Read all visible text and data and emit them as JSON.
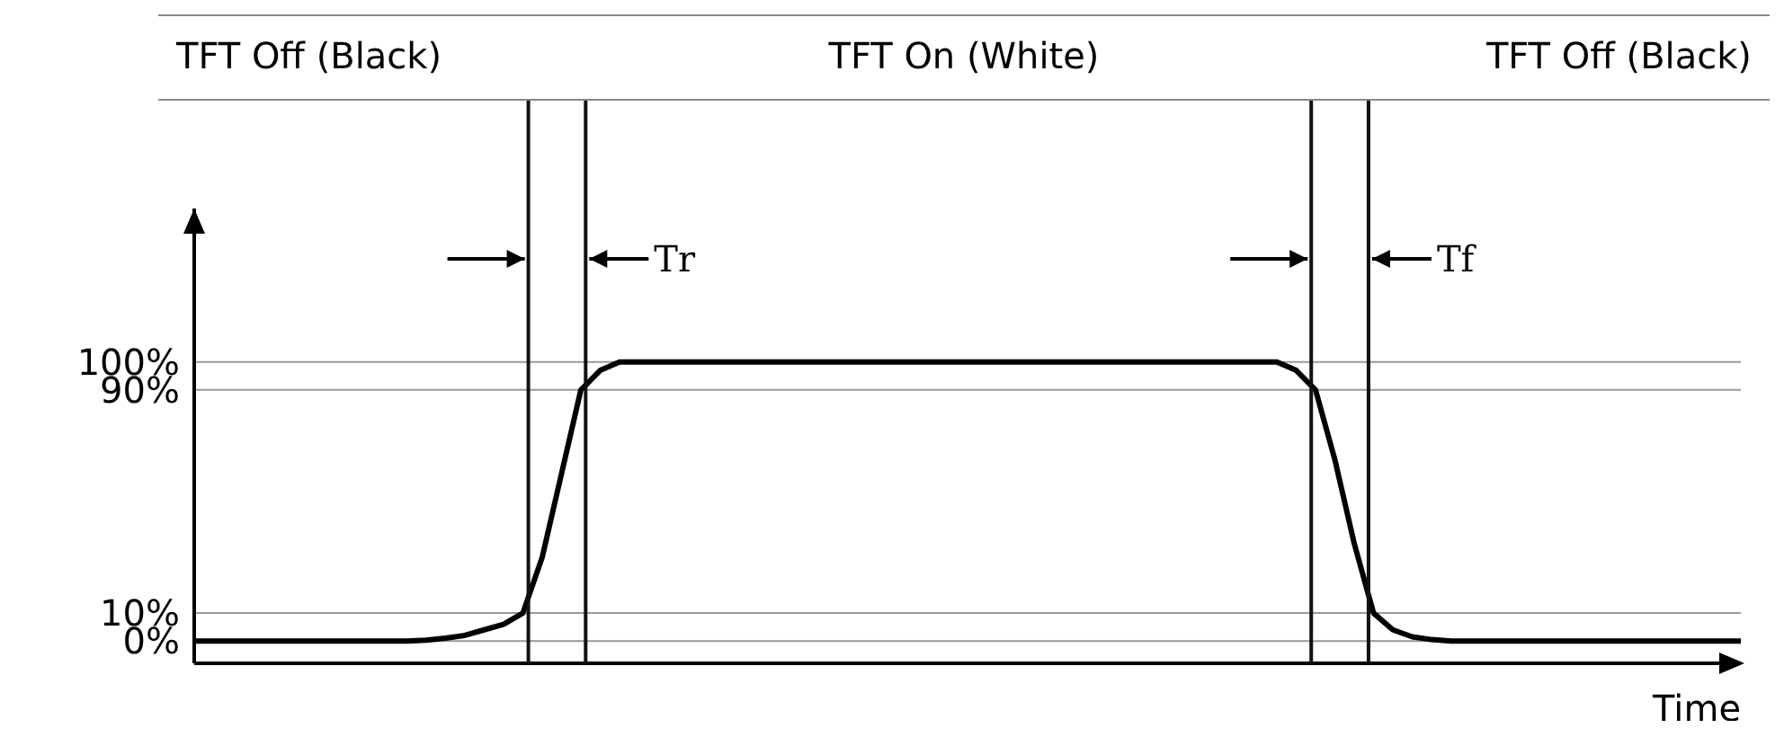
{
  "chart_data": {
    "type": "line",
    "xlabel": "Time",
    "tick_labels": "y",
    "ylim": [
      -8,
      155
    ],
    "categories": [
      null,
      null,
      null,
      null,
      null,
      null,
      null,
      null,
      null,
      null,
      null,
      null,
      null,
      null,
      null,
      null,
      null,
      null,
      null,
      null,
      null,
      null,
      null,
      null,
      null,
      null,
      null,
      null,
      null,
      null,
      null,
      null,
      null,
      null,
      null,
      null,
      null,
      null,
      null,
      null,
      null,
      null,
      null,
      null,
      null,
      null,
      null,
      null,
      null,
      null,
      null,
      null,
      null,
      null,
      null,
      null,
      null,
      null,
      null,
      null,
      null,
      null,
      null,
      null,
      null,
      null,
      null,
      null,
      null,
      null,
      null,
      null,
      null,
      null,
      null,
      null,
      null,
      null,
      null,
      null,
      null
    ],
    "yticks": [
      {
        "value": 0,
        "label": "0%"
      },
      {
        "value": 10,
        "label": "10%"
      },
      {
        "value": 90,
        "label": "90%"
      },
      {
        "value": 100,
        "label": "100%"
      }
    ],
    "marker": "none",
    "line_style": "solid",
    "series": [
      {
        "color": "#000000",
        "values": [
          0,
          0,
          0,
          0,
          0,
          0,
          0,
          0,
          0,
          0,
          0,
          0,
          0.3,
          1,
          2,
          4,
          6,
          10,
          30,
          60,
          90,
          97,
          100,
          100,
          100,
          100,
          100,
          100,
          100,
          100,
          100,
          100,
          100,
          100,
          100,
          100,
          100,
          100,
          100,
          100,
          100,
          100,
          100,
          100,
          100,
          100,
          100,
          100,
          100,
          100,
          100,
          100,
          100,
          100,
          100,
          100,
          100,
          97,
          90,
          65,
          35,
          10,
          4,
          1.5,
          0.5,
          0,
          0,
          0,
          0,
          0,
          0,
          0,
          0,
          0,
          0,
          0,
          0,
          0,
          0,
          0,
          0
        ]
      }
    ],
    "grid": "y",
    "annotations": [
      "TFT Off (Black)",
      "TFT On (White)",
      "TFT Off (Black)",
      "Tr",
      "Tf"
    ]
  }
}
